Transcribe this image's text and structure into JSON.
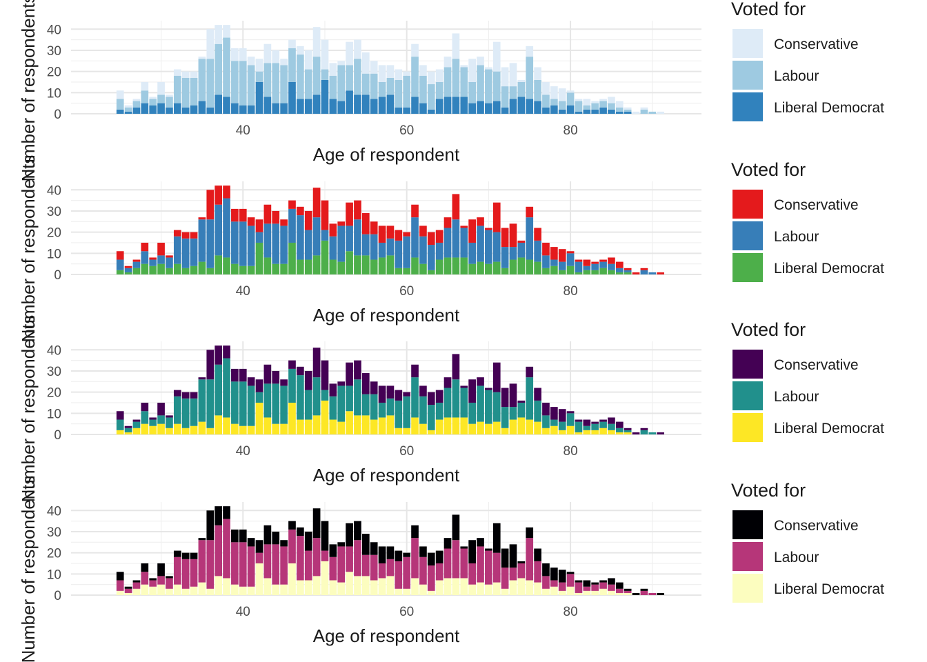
{
  "chart_data": {
    "type": "bar",
    "stacked": true,
    "x_label": "Age of respondent",
    "y_label": "Number of respondents",
    "legend_title": "Voted for",
    "legend_position": "right",
    "xlim": [
      19,
      96
    ],
    "ylim": [
      0,
      44
    ],
    "x_ticks": [
      40,
      60,
      80
    ],
    "y_ticks": [
      0,
      10,
      20,
      30,
      40
    ],
    "ages": [
      25,
      26,
      27,
      28,
      29,
      30,
      31,
      32,
      33,
      34,
      35,
      36,
      37,
      38,
      39,
      40,
      41,
      42,
      43,
      44,
      45,
      46,
      47,
      48,
      49,
      50,
      51,
      52,
      53,
      54,
      55,
      56,
      57,
      58,
      59,
      60,
      61,
      62,
      63,
      64,
      65,
      66,
      67,
      68,
      69,
      70,
      71,
      72,
      73,
      74,
      75,
      76,
      77,
      78,
      79,
      80,
      81,
      82,
      83,
      84,
      85,
      86,
      87,
      88,
      89,
      90,
      91,
      92,
      93
    ],
    "series": [
      {
        "name": "Liberal Democrat",
        "values": [
          2,
          1,
          3,
          5,
          4,
          5,
          3,
          5,
          3,
          4,
          6,
          3,
          9,
          8,
          5,
          4,
          4,
          15,
          8,
          5,
          5,
          15,
          7,
          7,
          9,
          16,
          7,
          6,
          11,
          9,
          9,
          7,
          8,
          9,
          3,
          3,
          8,
          5,
          2,
          7,
          8,
          8,
          8,
          5,
          6,
          5,
          6,
          3,
          7,
          8,
          7,
          6,
          3,
          4,
          2,
          4,
          1,
          2,
          2,
          3,
          2,
          1,
          1,
          0,
          0,
          0,
          0,
          0,
          0
        ]
      },
      {
        "name": "Labour",
        "values": [
          5,
          2,
          3,
          6,
          3,
          4,
          5,
          13,
          14,
          13,
          20,
          23,
          24,
          28,
          20,
          21,
          19,
          5,
          16,
          19,
          18,
          16,
          21,
          14,
          18,
          5,
          11,
          17,
          12,
          17,
          10,
          12,
          7,
          8,
          13,
          15,
          19,
          13,
          12,
          8,
          14,
          18,
          14,
          10,
          17,
          16,
          14,
          10,
          6,
          7,
          20,
          10,
          6,
          3,
          4,
          6,
          5,
          2,
          3,
          3,
          3,
          2,
          1,
          0,
          2,
          1,
          0,
          0,
          0
        ]
      },
      {
        "name": "Conservative",
        "values": [
          4,
          1,
          1,
          4,
          1,
          6,
          1,
          3,
          3,
          3,
          1,
          14,
          9,
          6,
          6,
          6,
          4,
          6,
          9,
          6,
          3,
          4,
          4,
          9,
          14,
          14,
          6,
          2,
          11,
          9,
          10,
          6,
          8,
          6,
          5,
          2,
          6,
          5,
          6,
          6,
          5,
          12,
          1,
          11,
          4,
          1,
          14,
          9,
          11,
          1,
          5,
          6,
          6,
          6,
          6,
          1,
          1,
          3,
          1,
          1,
          3,
          3,
          1,
          1,
          1,
          0,
          1,
          0,
          0
        ]
      }
    ],
    "panels": [
      {
        "palette": [
          "#DEEBF7",
          "#9ECAE1",
          "#3182BD"
        ],
        "legend": [
          "Conservative",
          "Labour",
          "Liberal Democrat"
        ]
      },
      {
        "palette": [
          "#E41A1C",
          "#377EB8",
          "#4DAF4A"
        ],
        "legend": [
          "Conservative",
          "Labour",
          "Liberal Democrat"
        ]
      },
      {
        "palette": [
          "#440154",
          "#21908C",
          "#FDE725"
        ],
        "legend": [
          "Conservative",
          "Labour",
          "Liberal Democrat"
        ]
      },
      {
        "palette": [
          "#000004",
          "#B63679",
          "#FCFDBF"
        ],
        "legend": [
          "Conservative",
          "Labour",
          "Liberal Democrat"
        ]
      }
    ]
  }
}
